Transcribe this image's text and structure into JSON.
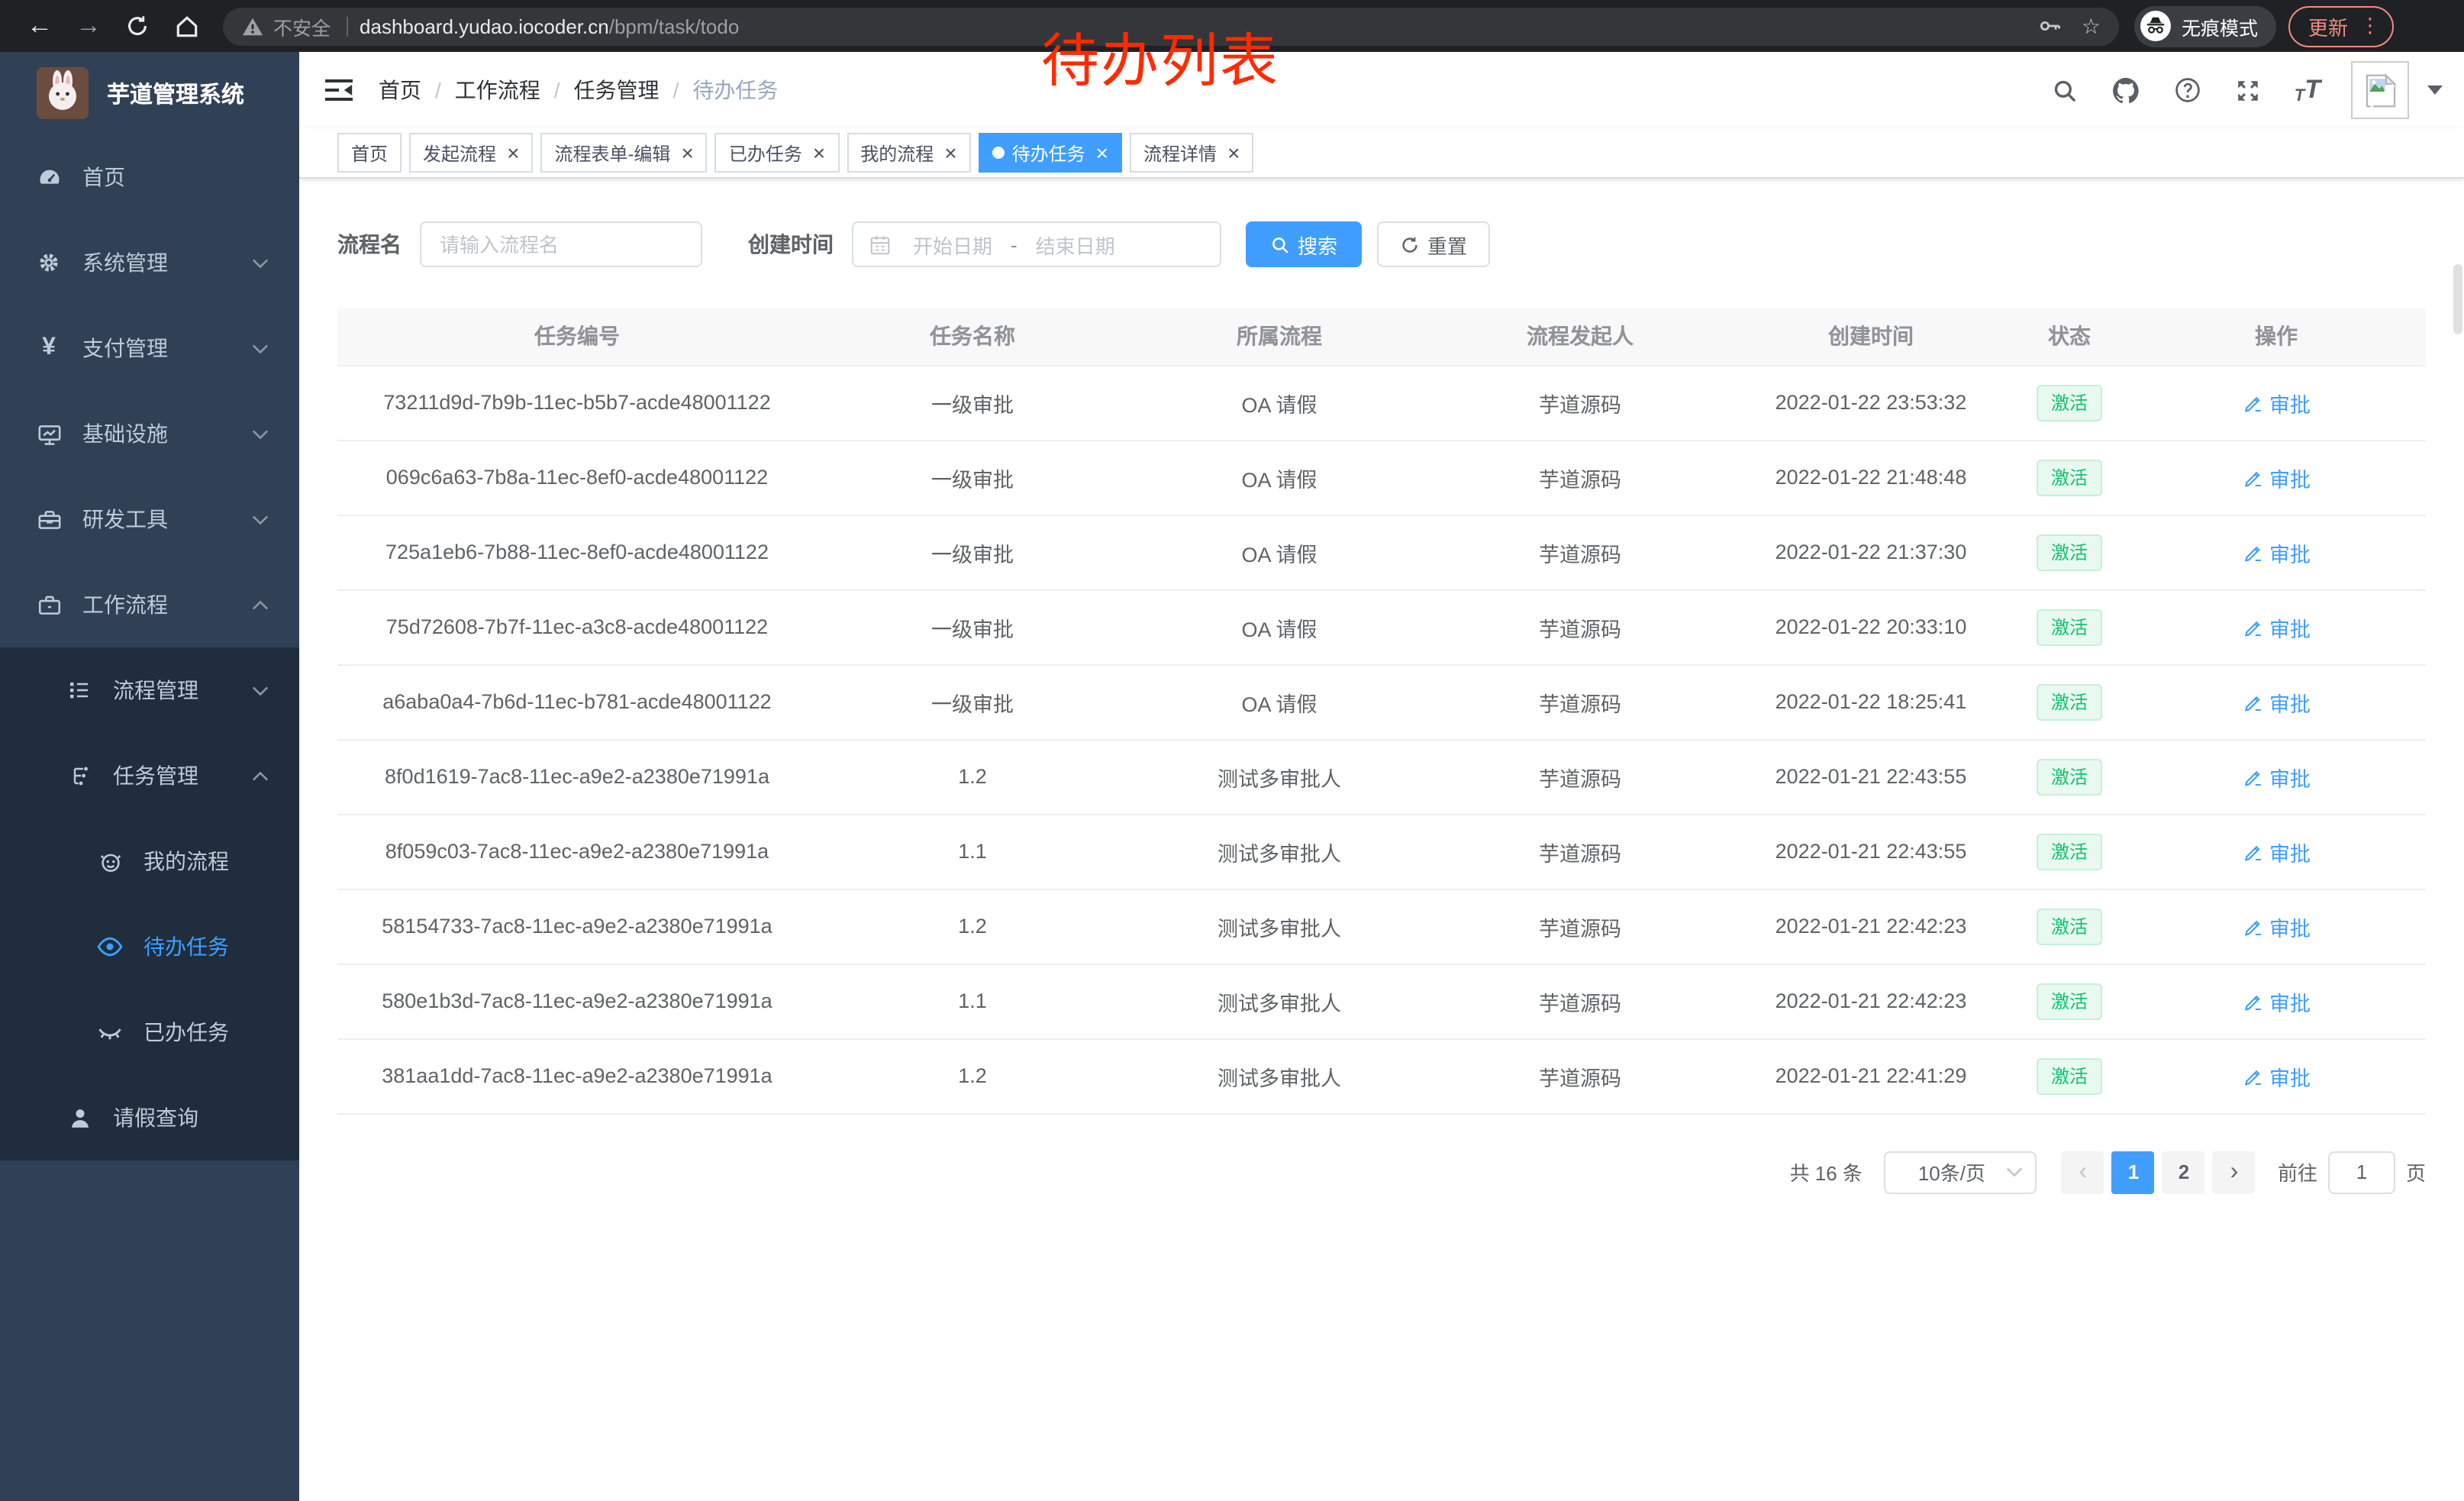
{
  "browser": {
    "security_label": "不安全",
    "url_host": "dashboard.yudao.iocoder.cn",
    "url_path": "/bpm/task/todo",
    "incognito_label": "无痕模式",
    "update_label": "更新"
  },
  "annotation": {
    "text": "待办列表",
    "color": "#ff2b00"
  },
  "colors": {
    "accent": "#409eff",
    "sidebar_bg": "#304156",
    "submenu_bg": "#1f2d3d",
    "status_green": "#11c26d",
    "annotation_red": "#ff2b00",
    "update_salmon": "#f28b82"
  },
  "sidebar": {
    "app_title": "芋道管理系统",
    "items": [
      {
        "key": "home",
        "label": "首页",
        "icon": "dashboard-icon",
        "level": 0
      },
      {
        "key": "system",
        "label": "系统管理",
        "icon": "gear-icon",
        "level": 0,
        "chevron": "down"
      },
      {
        "key": "payment",
        "label": "支付管理",
        "icon": "yen-icon",
        "level": 0,
        "chevron": "down"
      },
      {
        "key": "infra",
        "label": "基础设施",
        "icon": "monitor-icon",
        "level": 0,
        "chevron": "down"
      },
      {
        "key": "devtools",
        "label": "研发工具",
        "icon": "toolbox-icon",
        "level": 0,
        "chevron": "down"
      },
      {
        "key": "workflow",
        "label": "工作流程",
        "icon": "briefcase-icon",
        "level": 0,
        "chevron": "up"
      },
      {
        "key": "process-mgmt",
        "label": "流程管理",
        "icon": "list-icon",
        "level": 1,
        "chevron": "down",
        "submenu": true
      },
      {
        "key": "task-mgmt",
        "label": "任务管理",
        "icon": "tree-icon",
        "level": 1,
        "chevron": "up",
        "submenu": true
      },
      {
        "key": "my-process",
        "label": "我的流程",
        "icon": "face-icon",
        "level": 2,
        "submenu": true
      },
      {
        "key": "todo-task",
        "label": "待办任务",
        "icon": "eye-icon",
        "level": 2,
        "submenu": true,
        "active": true
      },
      {
        "key": "done-task",
        "label": "已办任务",
        "icon": "eye-closed-icon",
        "level": 2,
        "submenu": true
      },
      {
        "key": "leave-query",
        "label": "请假查询",
        "icon": "user-icon",
        "level": 1,
        "submenu": true
      }
    ]
  },
  "header": {
    "breadcrumbs": [
      "首页",
      "工作流程",
      "任务管理",
      "待办任务"
    ]
  },
  "tabs": [
    {
      "key": "home",
      "label": "首页",
      "closable": false
    },
    {
      "key": "start-process",
      "label": "发起流程",
      "closable": true
    },
    {
      "key": "form-edit",
      "label": "流程表单-编辑",
      "closable": true
    },
    {
      "key": "done-task",
      "label": "已办任务",
      "closable": true
    },
    {
      "key": "my-process",
      "label": "我的流程",
      "closable": true
    },
    {
      "key": "todo-task",
      "label": "待办任务",
      "closable": true,
      "active": true
    },
    {
      "key": "process-detail",
      "label": "流程详情",
      "closable": true
    }
  ],
  "filters": {
    "name_label": "流程名",
    "name_placeholder": "请输入流程名",
    "time_label": "创建时间",
    "start_placeholder": "开始日期",
    "range_separator": "-",
    "end_placeholder": "结束日期",
    "search_label": "搜索",
    "reset_label": "重置"
  },
  "table": {
    "columns": [
      "任务编号",
      "任务名称",
      "所属流程",
      "流程发起人",
      "创建时间",
      "状态",
      "操作"
    ],
    "rows": [
      {
        "id": "73211d9d-7b9b-11ec-b5b7-acde48001122",
        "name": "一级审批",
        "process": "OA 请假",
        "starter": "芋道源码",
        "created": "2022-01-22 23:53:32",
        "status": "激活",
        "action": "审批"
      },
      {
        "id": "069c6a63-7b8a-11ec-8ef0-acde48001122",
        "name": "一级审批",
        "process": "OA 请假",
        "starter": "芋道源码",
        "created": "2022-01-22 21:48:48",
        "status": "激活",
        "action": "审批"
      },
      {
        "id": "725a1eb6-7b88-11ec-8ef0-acde48001122",
        "name": "一级审批",
        "process": "OA 请假",
        "starter": "芋道源码",
        "created": "2022-01-22 21:37:30",
        "status": "激活",
        "action": "审批"
      },
      {
        "id": "75d72608-7b7f-11ec-a3c8-acde48001122",
        "name": "一级审批",
        "process": "OA 请假",
        "starter": "芋道源码",
        "created": "2022-01-22 20:33:10",
        "status": "激活",
        "action": "审批"
      },
      {
        "id": "a6aba0a4-7b6d-11ec-b781-acde48001122",
        "name": "一级审批",
        "process": "OA 请假",
        "starter": "芋道源码",
        "created": "2022-01-22 18:25:41",
        "status": "激活",
        "action": "审批"
      },
      {
        "id": "8f0d1619-7ac8-11ec-a9e2-a2380e71991a",
        "name": "1.2",
        "process": "测试多审批人",
        "starter": "芋道源码",
        "created": "2022-01-21 22:43:55",
        "status": "激活",
        "action": "审批"
      },
      {
        "id": "8f059c03-7ac8-11ec-a9e2-a2380e71991a",
        "name": "1.1",
        "process": "测试多审批人",
        "starter": "芋道源码",
        "created": "2022-01-21 22:43:55",
        "status": "激活",
        "action": "审批"
      },
      {
        "id": "58154733-7ac8-11ec-a9e2-a2380e71991a",
        "name": "1.2",
        "process": "测试多审批人",
        "starter": "芋道源码",
        "created": "2022-01-21 22:42:23",
        "status": "激活",
        "action": "审批"
      },
      {
        "id": "580e1b3d-7ac8-11ec-a9e2-a2380e71991a",
        "name": "1.1",
        "process": "测试多审批人",
        "starter": "芋道源码",
        "created": "2022-01-21 22:42:23",
        "status": "激活",
        "action": "审批"
      },
      {
        "id": "381aa1dd-7ac8-11ec-a9e2-a2380e71991a",
        "name": "1.2",
        "process": "测试多审批人",
        "starter": "芋道源码",
        "created": "2022-01-21 22:41:29",
        "status": "激活",
        "action": "审批"
      }
    ]
  },
  "pagination": {
    "total": "共 16 条",
    "page_size": "10条/页",
    "pages": [
      "1",
      "2"
    ],
    "active_page": "1",
    "goto_label": "前往",
    "goto_value": "1",
    "unit_label": "页"
  }
}
